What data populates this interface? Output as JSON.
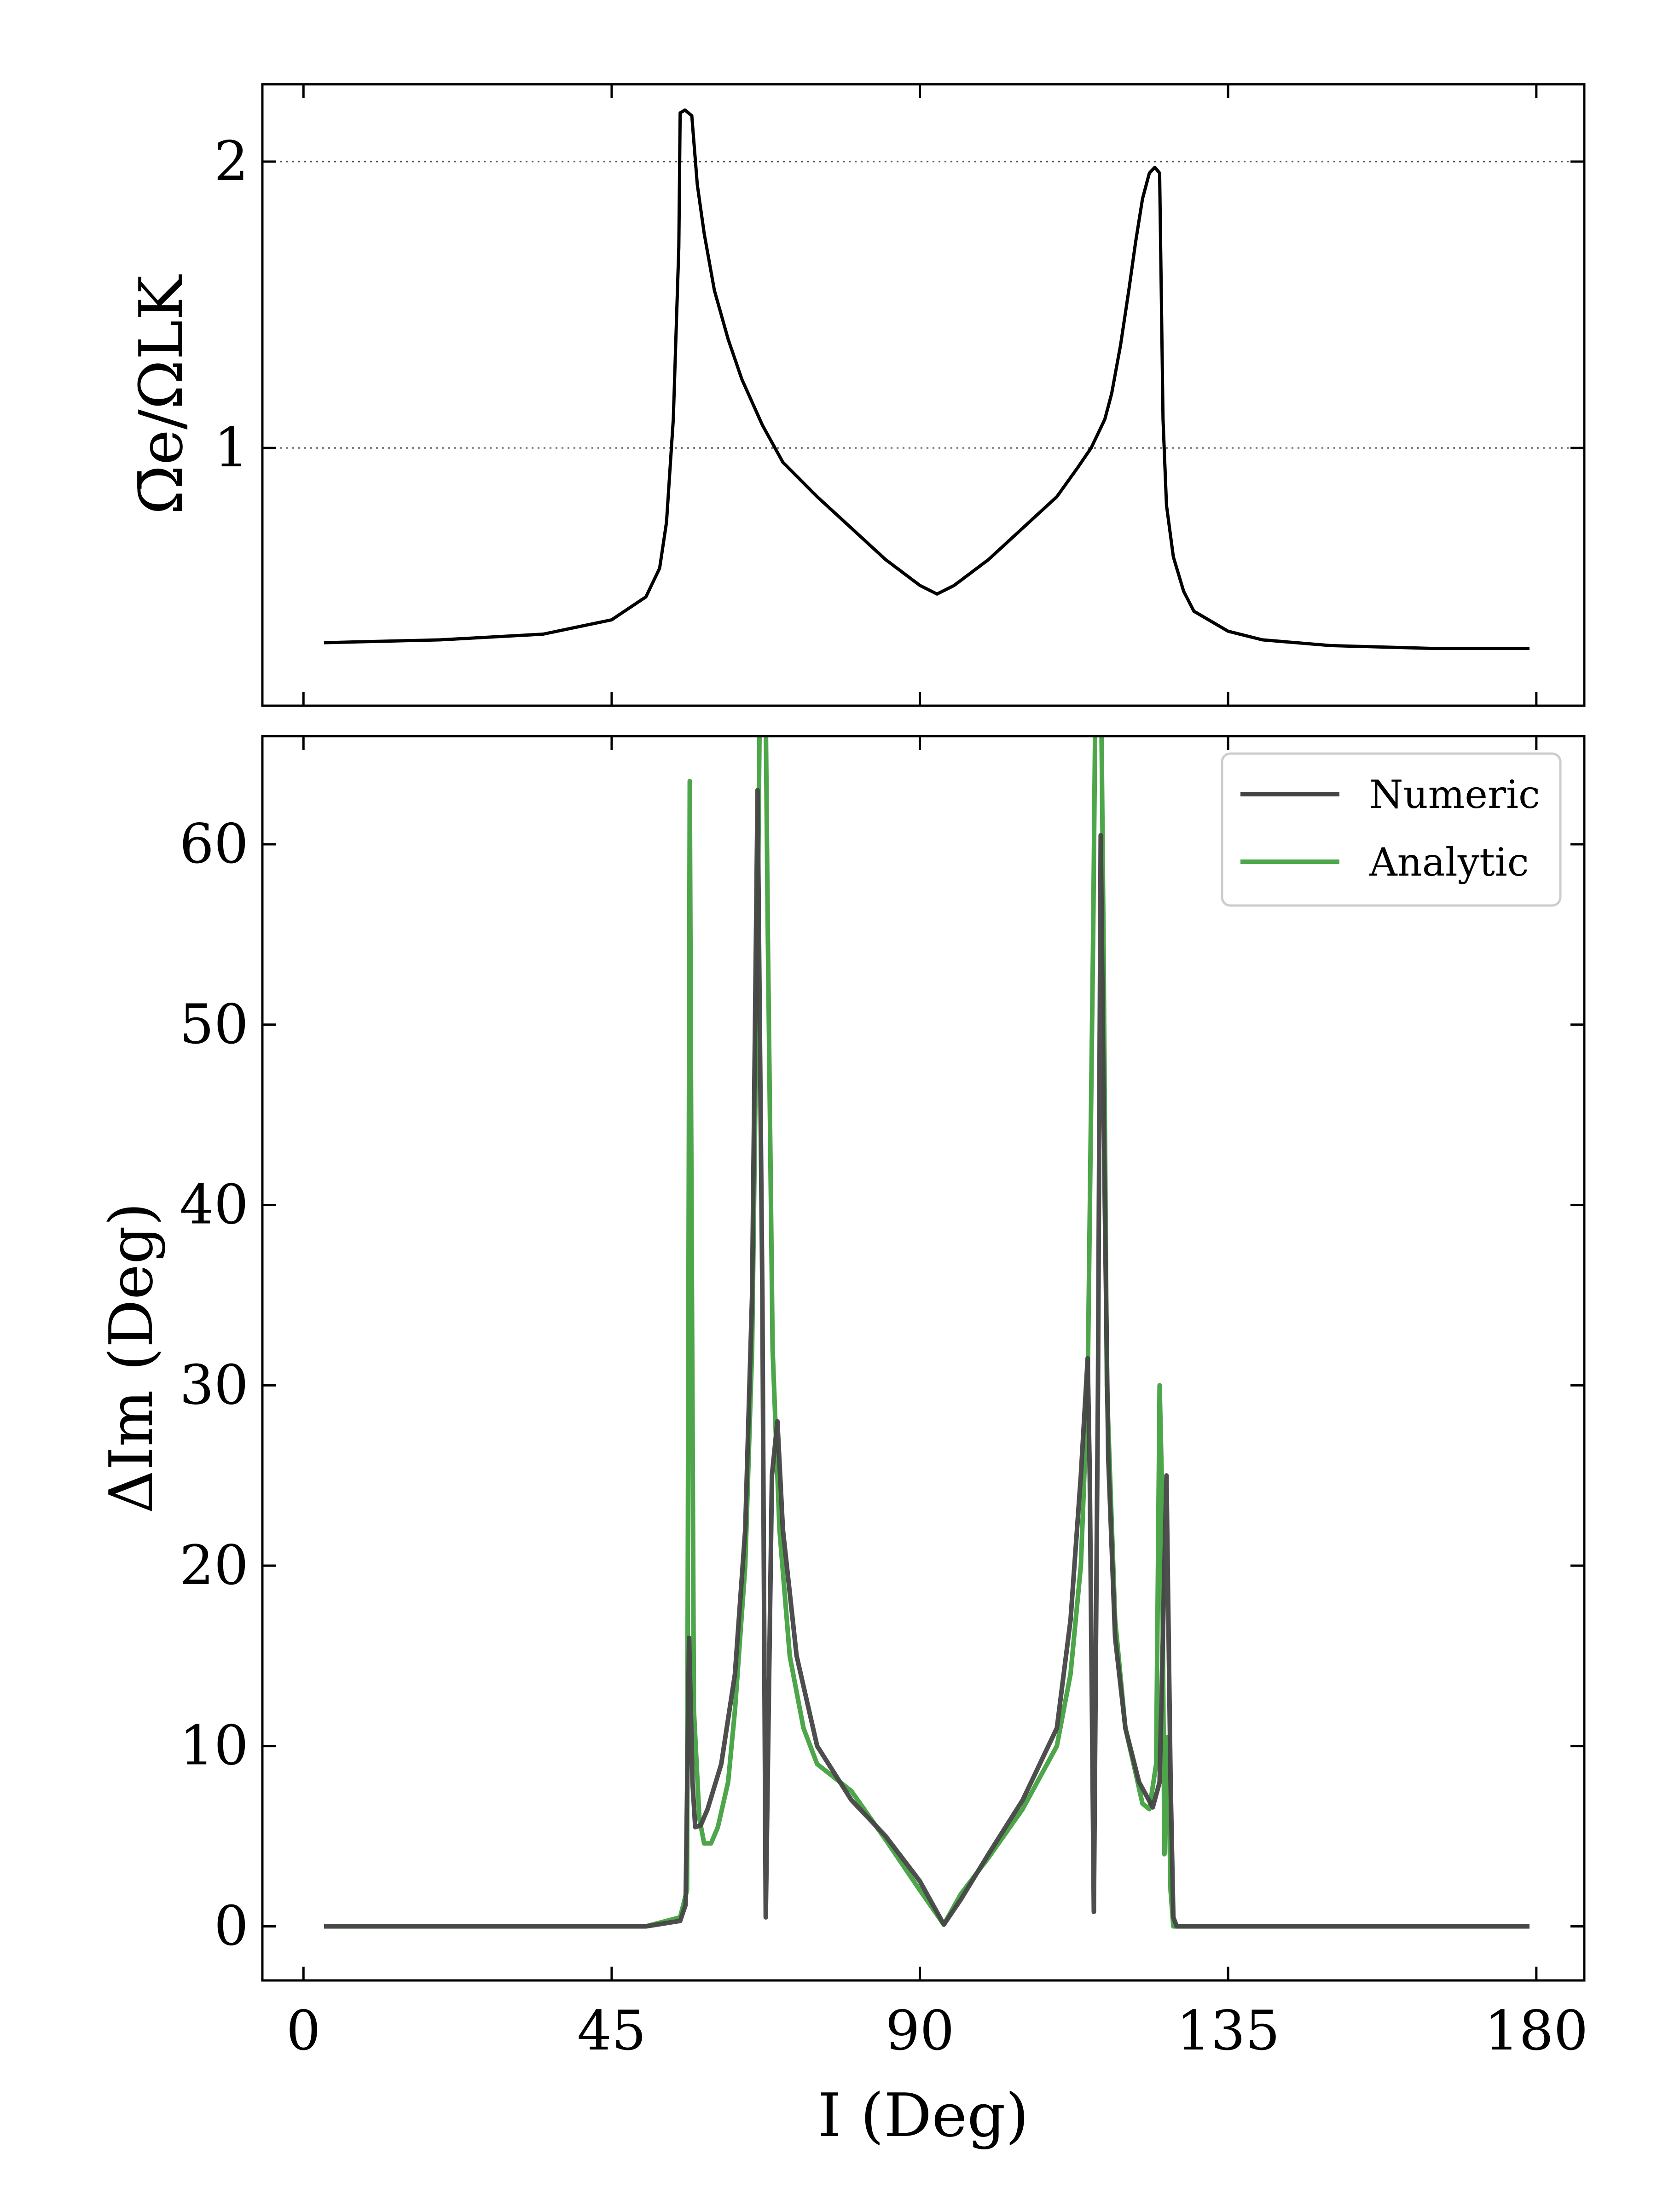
{
  "chart_data": [
    {
      "type": "line",
      "panel": "top",
      "ylabel": "Ω̄e/ΩLK",
      "xlim": [
        -6,
        187
      ],
      "ylim": [
        0.1,
        2.27
      ],
      "y_ticks": [
        1,
        2
      ],
      "y_tick_labels": [
        "1",
        "2"
      ],
      "x_ticks": [
        0,
        45,
        90,
        135,
        180
      ],
      "grid": "dotted horizontal lines at y = 1 and y = 2",
      "series": [
        {
          "color": "#000000",
          "x": [
            3,
            20,
            35,
            45,
            50,
            52,
            53,
            54,
            54.8,
            55,
            55.7,
            56.7,
            57.5,
            58.5,
            60,
            62,
            64,
            67,
            70,
            75,
            80,
            85,
            90,
            92.5,
            95,
            100,
            105,
            110,
            113,
            115,
            117,
            118,
            119.3,
            120.5,
            121.5,
            122.5,
            123.5,
            124.3,
            125,
            125.5,
            126,
            127,
            128.5,
            130,
            135,
            140,
            150,
            165,
            179
          ],
          "y": [
            0.32,
            0.33,
            0.35,
            0.4,
            0.48,
            0.58,
            0.74,
            1.1,
            1.7,
            2.17,
            2.18,
            2.16,
            1.92,
            1.75,
            1.55,
            1.38,
            1.24,
            1.08,
            0.95,
            0.83,
            0.72,
            0.61,
            0.52,
            0.49,
            0.52,
            0.61,
            0.72,
            0.83,
            0.93,
            1.0,
            1.1,
            1.19,
            1.36,
            1.55,
            1.72,
            1.87,
            1.96,
            1.98,
            1.96,
            1.1,
            0.8,
            0.62,
            0.5,
            0.43,
            0.36,
            0.33,
            0.31,
            0.3,
            0.3
          ]
        }
      ]
    },
    {
      "type": "line",
      "panel": "bottom",
      "xlabel": "I (Deg)",
      "ylabel": "ΔIm (Deg)",
      "xlim": [
        -6,
        187
      ],
      "ylim": [
        -3,
        66
      ],
      "x_ticks": [
        0,
        45,
        90,
        135,
        180
      ],
      "x_tick_labels": [
        "0",
        "45",
        "90",
        "135",
        "180"
      ],
      "y_ticks": [
        0,
        10,
        20,
        30,
        40,
        50,
        60
      ],
      "y_tick_labels": [
        "0",
        "10",
        "20",
        "30",
        "40",
        "50",
        "60"
      ],
      "legend": {
        "placement": "top-right",
        "entries": [
          "Numeric",
          "Analytic"
        ]
      },
      "series": [
        {
          "name": "Numeric",
          "color": "#444444",
          "x": [
            3,
            50,
            55,
            55.8,
            56.3,
            56.8,
            57.2,
            58,
            59,
            61,
            63,
            64.5,
            65.5,
            66.3,
            67,
            67.5,
            68.4,
            69.2,
            70,
            72,
            75,
            80,
            85,
            90,
            93.5,
            96,
            100,
            105,
            110,
            112,
            113.5,
            114.5,
            114.8,
            115.4,
            116,
            116.4,
            117,
            117.5,
            118.5,
            120,
            122,
            124,
            125,
            126,
            126.6,
            127,
            127.5,
            130,
            179
          ],
          "y": [
            0,
            0,
            0.3,
            1.2,
            16,
            8,
            5.5,
            5.6,
            6.5,
            9,
            14,
            22,
            35,
            63,
            35,
            0.5,
            25,
            28,
            22,
            15,
            10,
            7,
            5,
            2.5,
            0.1,
            1.5,
            4,
            7,
            11,
            17,
            25,
            31.5,
            25,
            0.8,
            30,
            60.5,
            40,
            26,
            16,
            11,
            8,
            6.6,
            8,
            25,
            8,
            0.5,
            0,
            0,
            0
          ]
        },
        {
          "name": "Analytic",
          "color": "#4da64a",
          "x": [
            3,
            50,
            55,
            56,
            56.4,
            56.6,
            57,
            57.8,
            58.5,
            59.5,
            60.5,
            62,
            63,
            64.5,
            65.5,
            66.3,
            66.8,
            67.3,
            67.8,
            68.5,
            69.5,
            71,
            73,
            75,
            80,
            85,
            90,
            93.5,
            96,
            100,
            105,
            110,
            112,
            113.5,
            114.5,
            115.3,
            115.8,
            116.3,
            116.8,
            117.3,
            118.5,
            120,
            121.5,
            122.5,
            123.5,
            124.5,
            125,
            125.3,
            125.7,
            126.2,
            126.6,
            127,
            127.5,
            130,
            179
          ],
          "y": [
            0,
            0,
            0.5,
            2,
            63.5,
            45,
            12,
            6,
            4.6,
            4.6,
            5.5,
            8,
            12,
            20,
            32,
            55,
            75,
            75,
            55,
            32,
            22,
            15,
            11,
            9,
            7.5,
            4.8,
            2,
            0.1,
            1.8,
            3.8,
            6.5,
            10,
            14,
            20,
            30,
            55,
            75,
            75,
            55,
            30,
            17,
            11,
            8.5,
            6.8,
            6.5,
            9,
            30,
            25,
            4,
            10.5,
            2,
            0,
            0,
            0,
            0
          ]
        }
      ]
    }
  ]
}
